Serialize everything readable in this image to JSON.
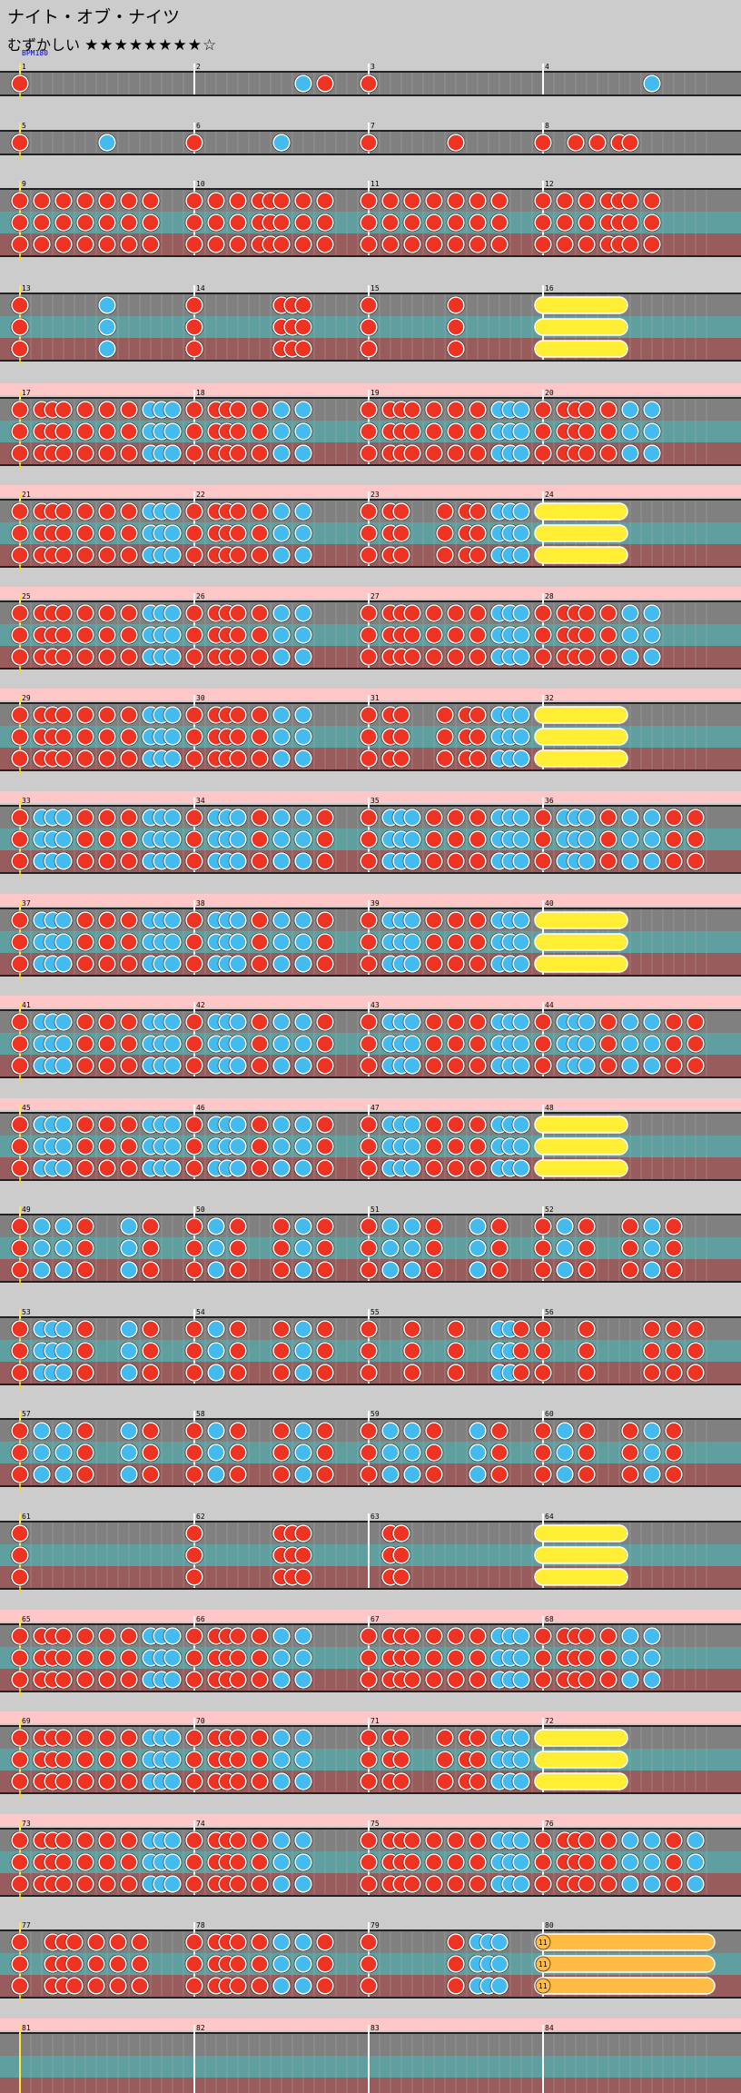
{
  "song": {
    "title": "ナイト・オブ・ナイツ",
    "difficulty_label": "むずかしい",
    "stars": "★★★★★★★★☆",
    "bpm_label": "BPM180"
  },
  "chart_data": {
    "type": "table",
    "measures_per_row": 4,
    "colors": {
      "don": "#ee3322",
      "ka": "#44bbee",
      "roll": "#ffee33",
      "balloon": "#ffbb44",
      "lane_gray": "#808080",
      "lane_teal": "#5f9f9f",
      "lane_red": "#995c5c",
      "gogo": "#ffc8c8",
      "page_bg": "#cccccc"
    },
    "rows": [
      {
        "lanes": 1,
        "gogo": false,
        "measures": [
          "1",
          "2",
          "3",
          "4"
        ],
        "patterns": [
          "D...............",
          "..........K.D...",
          "D...............",
          "..........K....."
        ]
      },
      {
        "lanes": 1,
        "gogo": false,
        "measures": [
          "5",
          "6",
          "7",
          "8"
        ],
        "patterns": [
          "D.......K.......",
          "D.......K.......",
          "D.......D.......",
          "D..D.D.DD......."
        ]
      },
      {
        "lanes": 3,
        "gogo": false,
        "measures": [
          "9",
          "10",
          "11",
          "12"
        ],
        "patterns": [
          "D.D.D.D.D.D.D...",
          "D.D.D.DDD.D.D...",
          "D.D.D.D.D.D.D...",
          "D.D.D.DDD.D....."
        ]
      },
      {
        "lanes": 3,
        "gogo": false,
        "measures": [
          "13",
          "14",
          "15",
          "16"
        ],
        "patterns": [
          "D.......K.......",
          "D.......DDD.....",
          "D.......D.......",
          "RRRRRRRR........"
        ]
      },
      {
        "lanes": 3,
        "gogo": true,
        "measures": [
          "17",
          "18",
          "19",
          "20"
        ],
        "patterns": [
          "D.DDD.D.D.D.KKK.",
          "D.DDD.D.K.K.....",
          "D.DDD.D.D.D.KKK.",
          "D.DDD.D.K.K....."
        ]
      },
      {
        "lanes": 3,
        "gogo": true,
        "measures": [
          "21",
          "22",
          "23",
          "24"
        ],
        "patterns": [
          "D.DDD.D.D.D.KKK.",
          "D.DDD.D.K.K.....",
          "D.DD...D.DD.KKK.",
          "RRRRRRRR........"
        ]
      },
      {
        "lanes": 3,
        "gogo": true,
        "measures": [
          "25",
          "26",
          "27",
          "28"
        ],
        "patterns": [
          "D.DDD.D.D.D.KKK.",
          "D.DDD.D.K.K.....",
          "D.DDD.D.D.D.KKK.",
          "D.DDD.D.K.K....."
        ]
      },
      {
        "lanes": 3,
        "gogo": true,
        "measures": [
          "29",
          "30",
          "31",
          "32"
        ],
        "patterns": [
          "D.DDD.D.D.D.KKK.",
          "D.DDD.D.K.K.....",
          "D.DD...D.DD.KKK.",
          "RRRRRRRR........"
        ]
      },
      {
        "lanes": 3,
        "gogo": true,
        "measures": [
          "33",
          "34",
          "35",
          "36"
        ],
        "patterns": [
          "D.KKK.D.D.D.KKK.",
          "D.KKK.D.K.K.D...",
          "D.KKK.D.D.D.KKK.",
          "D.KKK.D.K.K.D.D."
        ]
      },
      {
        "lanes": 3,
        "gogo": true,
        "measures": [
          "37",
          "38",
          "39",
          "40"
        ],
        "patterns": [
          "D.KKK.D.D.D.KKK.",
          "D.KKK.D.K.K.D...",
          "D.KKK.D.D.D.KKK.",
          "RRRRRRRR........"
        ]
      },
      {
        "lanes": 3,
        "gogo": true,
        "measures": [
          "41",
          "42",
          "43",
          "44"
        ],
        "patterns": [
          "D.KKK.D.D.D.KKK.",
          "D.KKK.D.K.K.D...",
          "D.KKK.D.D.D.KKK.",
          "D.KKK.D.K.K.D.D."
        ]
      },
      {
        "lanes": 3,
        "gogo": true,
        "measures": [
          "45",
          "46",
          "47",
          "48"
        ],
        "patterns": [
          "D.KKK.D.D.D.KKK.",
          "D.KKK.D.K.K.D...",
          "D.KKK.D.D.D.KKK.",
          "RRRRRRRR........"
        ]
      },
      {
        "lanes": 3,
        "gogo": false,
        "measures": [
          "49",
          "50",
          "51",
          "52"
        ],
        "patterns": [
          "D.K.K.D...K.D...",
          "D.K.D...D.K.D...",
          "D.K.K.D...K.D...",
          "D.K.D...D.K.D..."
        ]
      },
      {
        "lanes": 3,
        "gogo": false,
        "measures": [
          "53",
          "54",
          "55",
          "56"
        ],
        "patterns": [
          "D.KKK.D...K.D...",
          "D.K.D...D.K.D...",
          "D...D...D...KKD.",
          "D...D.....D.D.D."
        ]
      },
      {
        "lanes": 3,
        "gogo": false,
        "measures": [
          "57",
          "58",
          "59",
          "60"
        ],
        "patterns": [
          "D.K.K.D...K.D...",
          "D.K.D...D.K.D...",
          "D.K.K.D...K.D...",
          "D.K.D...D.K.D..."
        ]
      },
      {
        "lanes": 3,
        "gogo": false,
        "measures": [
          "61",
          "62",
          "63",
          "64"
        ],
        "patterns": [
          "D...............",
          "D.......DDD.....",
          "..DD............",
          "RRRRRRRR........"
        ]
      },
      {
        "lanes": 3,
        "gogo": true,
        "measures": [
          "65",
          "66",
          "67",
          "68"
        ],
        "patterns": [
          "D.DDD.D.D.D.KKK.",
          "D.DDD.D.K.K.....",
          "D.DDD.D.D.D.KKK.",
          "D.DDD.D.K.K....."
        ]
      },
      {
        "lanes": 3,
        "gogo": true,
        "measures": [
          "69",
          "70",
          "71",
          "72"
        ],
        "patterns": [
          "D.DDD.D.D.D.KKK.",
          "D.DDD.D.K.K.....",
          "D.DD...D.DD.KKK.",
          "RRRRRRRR........"
        ]
      },
      {
        "lanes": 3,
        "gogo": true,
        "measures": [
          "73",
          "74",
          "75",
          "76"
        ],
        "patterns": [
          "D.DDD.D.D.D.KKK.",
          "D.DDD.D.K.K.....",
          "D.DDD.D.D.D.KKK.",
          "D.DDD.D.K.K.D.K."
        ]
      },
      {
        "lanes": 3,
        "gogo": false,
        "measures": [
          "77",
          "78",
          "79",
          "80"
        ],
        "patterns": [
          "D..DDD.D.D.D....",
          "D.DDD.D.K.K.D...",
          "D.......D.KKK...",
          "BBBBBBBBBBBBBBBB"
        ]
      },
      {
        "lanes": 3,
        "gogo": true,
        "measures": [
          "81",
          "82",
          "83",
          "84"
        ],
        "patterns": [
          "................",
          "................",
          "................",
          "................"
        ]
      }
    ],
    "balloon_label": "11"
  }
}
